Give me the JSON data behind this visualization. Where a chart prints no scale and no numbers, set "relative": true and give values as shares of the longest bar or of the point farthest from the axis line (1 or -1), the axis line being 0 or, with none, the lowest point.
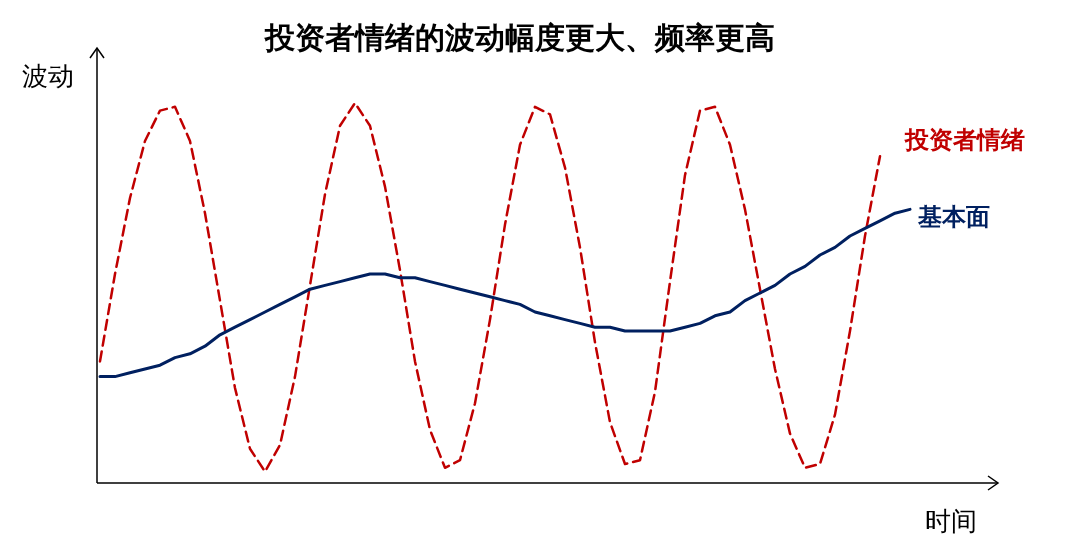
{
  "chart_data": {
    "type": "line",
    "title": "投资者情绪的波动幅度更大、频率更高",
    "xlabel": "时间",
    "ylabel": "波动",
    "relative": true,
    "legend": false,
    "categories": [
      null,
      null,
      null,
      null,
      null,
      null,
      null,
      null,
      null,
      null,
      null,
      null,
      null,
      null,
      null,
      null,
      null,
      null,
      null,
      null,
      null,
      null,
      null,
      null,
      null,
      null,
      null,
      null,
      null,
      null,
      null,
      null,
      null,
      null,
      null,
      null,
      null,
      null,
      null,
      null,
      null,
      null,
      null,
      null,
      null,
      null,
      null,
      null,
      null,
      null,
      null,
      null,
      null,
      null,
      null
    ],
    "series": [
      {
        "name": "投资者情绪",
        "color": "#c00000",
        "line_style": "dashed",
        "values": [
          0.32,
          0.55,
          0.75,
          0.9,
          0.98,
          0.99,
          0.9,
          0.71,
          0.48,
          0.25,
          0.09,
          0.03,
          0.1,
          0.28,
          0.52,
          0.76,
          0.94,
          1.0,
          0.94,
          0.78,
          0.56,
          0.32,
          0.14,
          0.04,
          0.06,
          0.21,
          0.43,
          0.68,
          0.89,
          0.99,
          0.97,
          0.83,
          0.62,
          0.37,
          0.16,
          0.05,
          0.06,
          0.24,
          0.53,
          0.81,
          0.98,
          0.99,
          0.89,
          0.72,
          0.51,
          0.3,
          0.13,
          0.04,
          0.05,
          0.18,
          0.4,
          0.65,
          0.86,
          null,
          null
        ]
      },
      {
        "name": "基本面",
        "color": "#002060",
        "line_style": "solid",
        "values": [
          0.28,
          0.28,
          0.29,
          0.3,
          0.31,
          0.33,
          0.34,
          0.36,
          0.39,
          0.41,
          0.43,
          0.45,
          0.47,
          0.49,
          0.51,
          0.52,
          0.53,
          0.54,
          0.55,
          0.55,
          0.54,
          0.54,
          0.53,
          0.52,
          0.51,
          0.5,
          0.49,
          0.48,
          0.47,
          0.45,
          0.44,
          0.43,
          0.42,
          0.41,
          0.41,
          0.4,
          0.4,
          0.4,
          0.4,
          0.41,
          0.42,
          0.44,
          0.45,
          0.48,
          0.5,
          0.52,
          0.55,
          0.57,
          0.6,
          0.62,
          0.65,
          0.67,
          0.69,
          0.71,
          0.72
        ]
      }
    ]
  }
}
